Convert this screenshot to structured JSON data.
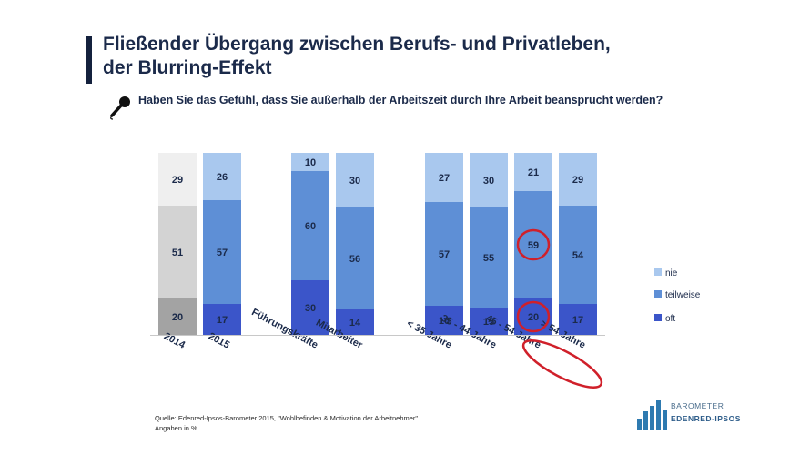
{
  "title_line1": "Fließender Übergang zwischen Berufs- und Privatleben,",
  "title_line2": "der Blurring-Effekt",
  "question": "Haben Sie das Gefühl, dass Sie außerhalb der Arbeitszeit durch Ihre Arbeit beansprucht werden?",
  "source_line1": "Quelle: Edenred-Ipsos-Barometer 2015, \"Wohlbefinden & Motivation der Arbeitnehmer\"",
  "source_line2": "Angaben in %",
  "logo_line1": "BAROMETER",
  "logo_line2": "EDENRED-IPSOS",
  "colors": {
    "nie": "#a9c8ee",
    "teilweise": "#5e8fd6",
    "oft": "#3b55c9",
    "nie_2014": "#efefef",
    "teilweise_2014": "#d3d3d3",
    "oft_2014": "#a3a3a3",
    "highlight": "#d0202a",
    "text": "#1b2a4a"
  },
  "chart_data": {
    "type": "bar",
    "stacked": true,
    "unit": "%",
    "categories": [
      "2014",
      "2015",
      "Führungskräfte",
      "Mitarbeiter",
      "< 35 Jahre",
      "35 - 44 Jahre",
      "45 - 54 Jahre",
      "> 54 Jahre"
    ],
    "series": [
      {
        "name": "oft",
        "values": [
          20,
          17,
          30,
          14,
          16,
          15,
          20,
          17
        ]
      },
      {
        "name": "teilweise",
        "values": [
          51,
          57,
          60,
          56,
          57,
          55,
          59,
          54
        ]
      },
      {
        "name": "nie",
        "values": [
          29,
          26,
          10,
          30,
          27,
          30,
          21,
          29
        ]
      }
    ],
    "legend": [
      "nie",
      "teilweise",
      "oft"
    ],
    "legend_position": "right",
    "highlighted": {
      "category": "45 - 54 Jahre",
      "values": [
        59,
        20
      ]
    }
  }
}
